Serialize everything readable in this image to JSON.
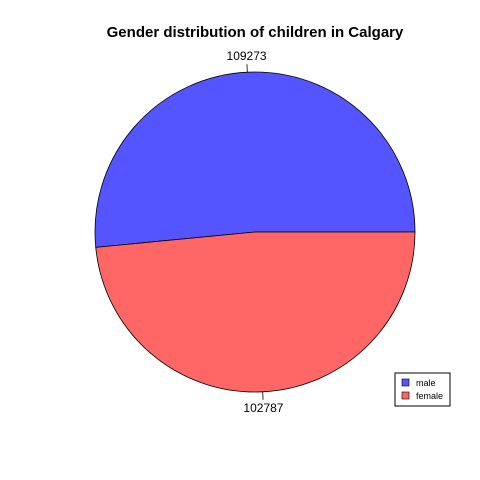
{
  "chart_data": {
    "type": "pie",
    "title": "Gender distribution of children in Calgary",
    "slices": [
      {
        "name": "male",
        "value": 109273,
        "label": "109273",
        "color": "#5555ff"
      },
      {
        "name": "female",
        "value": 102787,
        "label": "102787",
        "color": "#ff6666"
      }
    ],
    "legend_position": "bottom-right",
    "start_angle_deg": 0,
    "direction": "counterclockwise"
  }
}
